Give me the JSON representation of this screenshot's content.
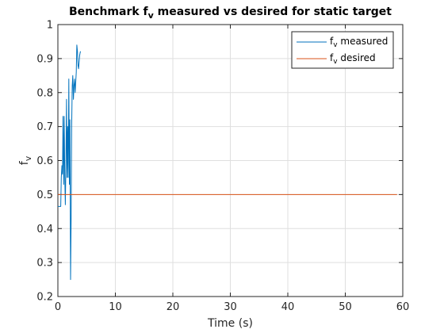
{
  "chart_data": {
    "type": "line",
    "title": {
      "prefix": "Benchmark f",
      "sub": "v",
      "suffix": " measured vs desired for static target"
    },
    "xlabel": "Time (s)",
    "ylabel": {
      "main": "f",
      "sub": "v"
    },
    "xlim": [
      0,
      60
    ],
    "ylim": [
      0.2,
      1
    ],
    "xticks": [
      0,
      10,
      20,
      30,
      40,
      50,
      60
    ],
    "xtick_labels": [
      "0",
      "10",
      "20",
      "30",
      "40",
      "50",
      "60"
    ],
    "yticks": [
      0.2,
      0.3,
      0.4,
      0.5,
      0.6,
      0.7,
      0.8,
      0.9,
      1
    ],
    "ytick_labels": [
      "0.2",
      "0.3",
      "0.4",
      "0.5",
      "0.6",
      "0.7",
      "0.8",
      "0.9",
      "1"
    ],
    "grid": true,
    "legend_position": "top-right",
    "series": [
      {
        "name": {
          "main": "f",
          "sub": "v",
          "suffix": " measured"
        },
        "color": "#0072BD",
        "x": [
          0.0,
          0.3,
          0.5,
          0.6,
          0.7,
          0.8,
          0.9,
          1.0,
          1.1,
          1.2,
          1.3,
          1.4,
          1.5,
          1.6,
          1.7,
          1.8,
          1.9,
          2.0,
          2.1,
          2.2,
          2.3,
          2.4,
          2.5,
          2.6,
          2.7,
          2.8,
          2.9,
          3.0,
          3.1,
          3.2,
          3.3,
          3.4,
          3.5,
          3.6,
          3.7,
          3.8,
          3.9,
          4.0
        ],
        "y": [
          0.465,
          0.465,
          0.465,
          0.55,
          0.585,
          0.56,
          0.73,
          0.53,
          0.73,
          0.55,
          0.47,
          0.6,
          0.78,
          0.55,
          0.7,
          0.55,
          0.84,
          0.53,
          0.72,
          0.25,
          0.43,
          0.7,
          0.82,
          0.85,
          0.78,
          0.82,
          0.84,
          0.8,
          0.83,
          0.86,
          0.94,
          0.92,
          0.88,
          0.87,
          0.89,
          0.91,
          0.92,
          0.92
        ]
      },
      {
        "name": {
          "main": "f",
          "sub": "v",
          "suffix": " desired"
        },
        "color": "#D95319",
        "x": [
          0,
          59
        ],
        "y": [
          0.5,
          0.5
        ]
      }
    ]
  }
}
